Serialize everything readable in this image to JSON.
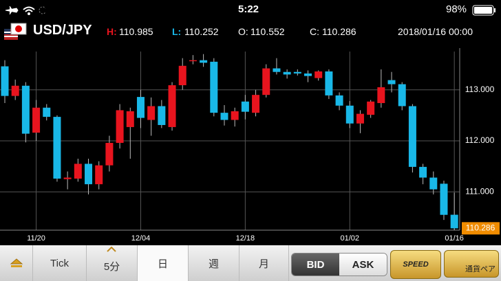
{
  "status_bar": {
    "time": "5:22",
    "battery": "98%"
  },
  "header": {
    "pair": "USD/JPY",
    "high_label": "H:",
    "low_label": "L:",
    "open_label": "O:",
    "close_label": "C:",
    "datetime": "2018/01/16 00:00"
  },
  "chart_data": {
    "type": "candlestick",
    "categories": [
      null,
      null,
      null,
      "11/20",
      null,
      null,
      null,
      null,
      null,
      null,
      null,
      null,
      null,
      "12/04",
      null,
      null,
      null,
      null,
      null,
      null,
      null,
      null,
      null,
      "12/18",
      null,
      null,
      null,
      null,
      null,
      null,
      null,
      null,
      null,
      "01/02",
      null,
      null,
      null,
      null,
      null,
      null,
      null,
      null,
      null,
      "01/16"
    ],
    "open": [
      113.46,
      112.88,
      113.08,
      112.16,
      112.65,
      112.47,
      111.25,
      111.26,
      111.55,
      111.15,
      111.52,
      111.96,
      112.27,
      112.86,
      112.41,
      112.68,
      112.27,
      113.09,
      113.56,
      113.58,
      113.55,
      112.55,
      112.41,
      112.77,
      112.55,
      112.9,
      113.42,
      113.35,
      113.35,
      113.32,
      113.23,
      113.36,
      112.89,
      112.69,
      112.34,
      112.51,
      112.74,
      113.19,
      113.11,
      112.68,
      111.49,
      111.28,
      111.16,
      110.552
    ],
    "high": [
      113.58,
      113.2,
      113.15,
      112.8,
      112.72,
      112.5,
      111.4,
      111.65,
      111.65,
      111.6,
      112.1,
      112.72,
      112.65,
      113.0,
      112.85,
      112.8,
      113.15,
      113.62,
      113.68,
      113.7,
      113.62,
      112.7,
      112.65,
      112.9,
      113.0,
      113.5,
      113.62,
      113.4,
      113.4,
      113.38,
      113.38,
      113.4,
      112.95,
      112.78,
      112.6,
      112.8,
      113.4,
      113.35,
      113.15,
      112.72,
      111.55,
      111.4,
      111.22,
      110.985
    ],
    "low": [
      112.74,
      112.8,
      111.97,
      112.0,
      112.4,
      111.2,
      111.05,
      111.2,
      110.95,
      111.05,
      111.4,
      111.85,
      111.65,
      112.25,
      112.1,
      112.25,
      112.2,
      113.0,
      113.5,
      113.45,
      112.48,
      112.3,
      112.28,
      112.42,
      112.48,
      112.85,
      113.3,
      113.22,
      113.28,
      113.15,
      113.18,
      112.82,
      112.6,
      112.25,
      112.15,
      112.45,
      112.65,
      112.95,
      112.6,
      111.38,
      111.15,
      110.95,
      110.45,
      110.252
    ],
    "close": [
      112.88,
      113.08,
      112.14,
      112.65,
      112.47,
      111.26,
      111.28,
      111.55,
      111.15,
      111.52,
      111.96,
      112.6,
      112.58,
      112.45,
      112.68,
      112.31,
      113.09,
      113.47,
      113.58,
      113.53,
      112.55,
      112.41,
      112.58,
      112.57,
      112.9,
      113.42,
      113.35,
      113.3,
      113.32,
      113.27,
      113.36,
      112.89,
      112.69,
      112.34,
      112.53,
      112.77,
      113.05,
      113.11,
      112.68,
      111.49,
      111.28,
      111.05,
      110.55,
      110.286
    ],
    "up_color": "#e8141e",
    "down_color": "#19b8e8",
    "ylim": [
      110.25,
      113.75
    ],
    "yticks": [
      {
        "value": 111,
        "label": "111.000"
      },
      {
        "value": 112,
        "label": "112.000"
      },
      {
        "value": 113,
        "label": "113.000"
      }
    ],
    "grid": true
  },
  "toolbar": {
    "buttons": [
      "Tick",
      "5分",
      "日",
      "週",
      "月"
    ],
    "sides": [
      "BID",
      "ASK"
    ],
    "speed": "SPEED",
    "pair_button": "通貨ペア"
  }
}
